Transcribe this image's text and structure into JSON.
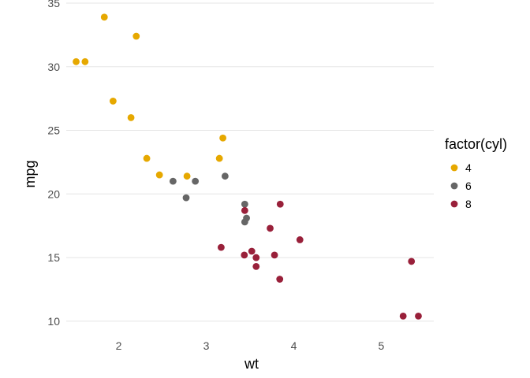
{
  "chart_data": {
    "type": "scatter",
    "title": "",
    "xlabel": "wt",
    "ylabel": "mpg",
    "xlim": [
      1.4,
      5.6
    ],
    "ylim": [
      9.0,
      35.0
    ],
    "x_ticks": [
      2,
      3,
      4,
      5
    ],
    "y_ticks": [
      10,
      15,
      20,
      25,
      30,
      35
    ],
    "x_tick_labels": [
      "2",
      "3",
      "4",
      "5"
    ],
    "y_tick_labels": [
      "10",
      "15",
      "20",
      "25",
      "30",
      "35"
    ],
    "grid": true,
    "legend": {
      "title": "factor(cyl)",
      "position": "right",
      "entries": [
        "4",
        "6",
        "8"
      ]
    },
    "series": [
      {
        "name": "4",
        "color": "#E6A800",
        "points": [
          {
            "x": 2.32,
            "y": 22.8
          },
          {
            "x": 3.19,
            "y": 24.4
          },
          {
            "x": 3.15,
            "y": 22.8
          },
          {
            "x": 2.2,
            "y": 32.4
          },
          {
            "x": 1.615,
            "y": 30.4
          },
          {
            "x": 1.835,
            "y": 33.9
          },
          {
            "x": 2.465,
            "y": 21.5
          },
          {
            "x": 1.935,
            "y": 27.3
          },
          {
            "x": 2.14,
            "y": 26.0
          },
          {
            "x": 1.513,
            "y": 30.4
          },
          {
            "x": 2.78,
            "y": 21.4
          }
        ]
      },
      {
        "name": "6",
        "color": "#666666",
        "points": [
          {
            "x": 2.62,
            "y": 21.0
          },
          {
            "x": 2.875,
            "y": 21.0
          },
          {
            "x": 3.215,
            "y": 21.4
          },
          {
            "x": 3.46,
            "y": 18.1
          },
          {
            "x": 3.44,
            "y": 19.2
          },
          {
            "x": 3.44,
            "y": 17.8
          },
          {
            "x": 2.77,
            "y": 19.7
          }
        ]
      },
      {
        "name": "8",
        "color": "#99203A",
        "points": [
          {
            "x": 3.44,
            "y": 18.7
          },
          {
            "x": 3.57,
            "y": 14.3
          },
          {
            "x": 4.07,
            "y": 16.4
          },
          {
            "x": 3.73,
            "y": 17.3
          },
          {
            "x": 3.78,
            "y": 15.2
          },
          {
            "x": 5.25,
            "y": 10.4
          },
          {
            "x": 5.424,
            "y": 10.4
          },
          {
            "x": 5.345,
            "y": 14.7
          },
          {
            "x": 3.52,
            "y": 15.5
          },
          {
            "x": 3.435,
            "y": 15.2
          },
          {
            "x": 3.84,
            "y": 13.3
          },
          {
            "x": 3.845,
            "y": 19.2
          },
          {
            "x": 3.17,
            "y": 15.8
          },
          {
            "x": 3.57,
            "y": 15.0
          }
        ]
      }
    ]
  }
}
